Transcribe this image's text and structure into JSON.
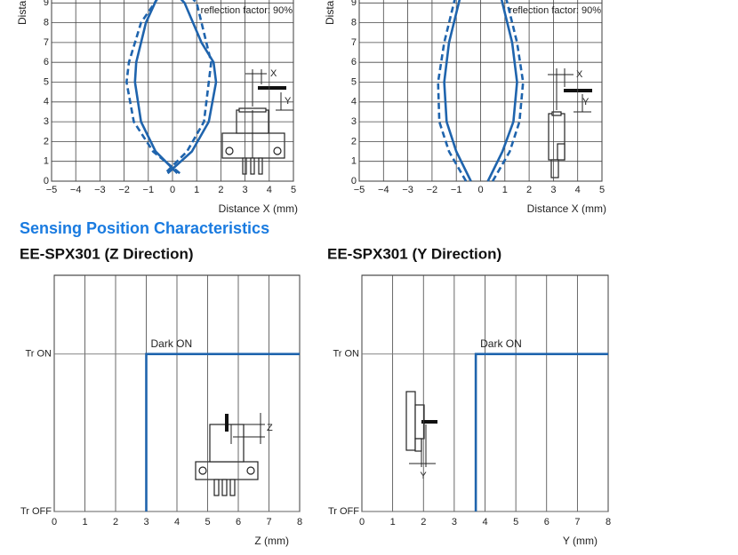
{
  "heading": "Sensing Position Characteristics",
  "chart_data": [
    {
      "type": "line",
      "annotation": "reflection factor: 90%",
      "x_label": "Distance X (mm)",
      "y_label": "Distance Y (mm)",
      "xlim": [
        -5,
        5
      ],
      "ylim": [
        0,
        10
      ],
      "xticks": [
        {
          "value": -5,
          "label": "−5"
        },
        {
          "value": -4,
          "label": "−4"
        },
        {
          "value": -3,
          "label": "−3"
        },
        {
          "value": -2,
          "label": "−2"
        },
        {
          "value": -1,
          "label": "−1"
        },
        0,
        1,
        2,
        3,
        4,
        5
      ],
      "yticks": [
        0,
        1,
        2,
        3,
        4,
        5,
        6,
        7,
        8,
        9
      ],
      "grid": true,
      "diagram_labels": [
        "X",
        "Y"
      ],
      "series": [
        {
          "color": "#1f64ad",
          "dash": false,
          "x": [
            0.2,
            -0.7,
            -1.3,
            -1.55,
            -1.5,
            -1.1,
            -0.5,
            -0.2,
            0.5,
            1.2,
            1.7,
            1.8,
            1.5,
            0.8,
            -0.2
          ],
          "y": [
            0.4,
            1.5,
            3,
            5,
            6,
            8,
            9.6,
            9.9,
            9,
            7,
            6,
            5,
            3,
            1.5,
            0.4
          ]
        },
        {
          "color": "#1f64ad",
          "dash": true,
          "x": [
            0.3,
            -0.8,
            -1.6,
            -1.9,
            -1.8,
            -1.3,
            -0.4,
            0.3,
            1.0,
            1.4,
            1.6,
            1.5,
            1.3,
            0.6,
            -0.3
          ],
          "y": [
            0.4,
            1.5,
            3,
            5,
            6,
            8,
            9.6,
            9.9,
            9,
            7,
            6,
            5,
            3,
            1.5,
            0.4
          ]
        }
      ]
    },
    {
      "type": "line",
      "annotation": "reflection factor: 90%",
      "x_label": "Distance X (mm)",
      "y_label": "Distance Y (mm)",
      "xlim": [
        -5,
        5
      ],
      "ylim": [
        0,
        10
      ],
      "xticks": [
        {
          "value": -5,
          "label": "−5"
        },
        {
          "value": -4,
          "label": "−4"
        },
        {
          "value": -3,
          "label": "−3"
        },
        {
          "value": -2,
          "label": "−2"
        },
        {
          "value": -1,
          "label": "−1"
        },
        0,
        1,
        2,
        3,
        4,
        5
      ],
      "yticks": [
        0,
        1,
        2,
        3,
        4,
        5,
        6,
        7,
        8,
        9
      ],
      "grid": true,
      "diagram_labels": [
        "X",
        "Y"
      ],
      "series": [
        {
          "color": "#1f64ad",
          "dash": false,
          "x": [
            -0.4,
            -1.0,
            -1.4,
            -1.5,
            -1.3,
            -0.8,
            null,
            0.3,
            0.9,
            1.35,
            1.5,
            1.3,
            0.8
          ],
          "y": [
            0,
            1.5,
            3,
            5,
            7,
            9.5,
            null,
            0,
            1.5,
            3,
            5,
            7,
            9.5
          ]
        },
        {
          "color": "#1f64ad",
          "dash": true,
          "x": [
            -0.6,
            -1.3,
            -1.7,
            -1.75,
            -1.5,
            -1.0,
            null,
            0.5,
            1.2,
            1.6,
            1.75,
            1.5,
            1.0
          ],
          "y": [
            0,
            1.5,
            3,
            5,
            7,
            9.5,
            null,
            0,
            1.5,
            3,
            5,
            7,
            9.5
          ]
        }
      ]
    },
    {
      "type": "step",
      "title": "EE-SPX301 (Z Direction)",
      "annotation": "Dark ON",
      "x_label": "Z (mm)",
      "xlim": [
        0,
        8
      ],
      "ylim": [
        0,
        1.5
      ],
      "xticks": [
        0,
        1,
        2,
        3,
        4,
        5,
        6,
        7,
        8
      ],
      "yticks": [
        {
          "value": 0,
          "label": "Tr  OFF"
        },
        {
          "value": 1,
          "label": "Tr  ON"
        }
      ],
      "grid": true,
      "diagram_labels": [
        "Z"
      ],
      "series": [
        {
          "color": "#1f64ad",
          "dash": false,
          "x": [
            3,
            3,
            8
          ],
          "y": [
            0,
            1,
            1
          ]
        }
      ]
    },
    {
      "type": "step",
      "title": "EE-SPX301 (Y Direction)",
      "annotation": "Dark ON",
      "x_label": "Y (mm)",
      "xlim": [
        0,
        8
      ],
      "ylim": [
        0,
        1.5
      ],
      "xticks": [
        0,
        1,
        2,
        3,
        4,
        5,
        6,
        7,
        8
      ],
      "yticks": [
        {
          "value": 0,
          "label": "Tr  OFF"
        },
        {
          "value": 1,
          "label": "Tr  ON"
        }
      ],
      "grid": true,
      "diagram_labels": [
        "Y"
      ],
      "series": [
        {
          "color": "#1f64ad",
          "dash": false,
          "x": [
            3.7,
            3.7,
            8
          ],
          "y": [
            0,
            1,
            1
          ]
        }
      ]
    }
  ]
}
